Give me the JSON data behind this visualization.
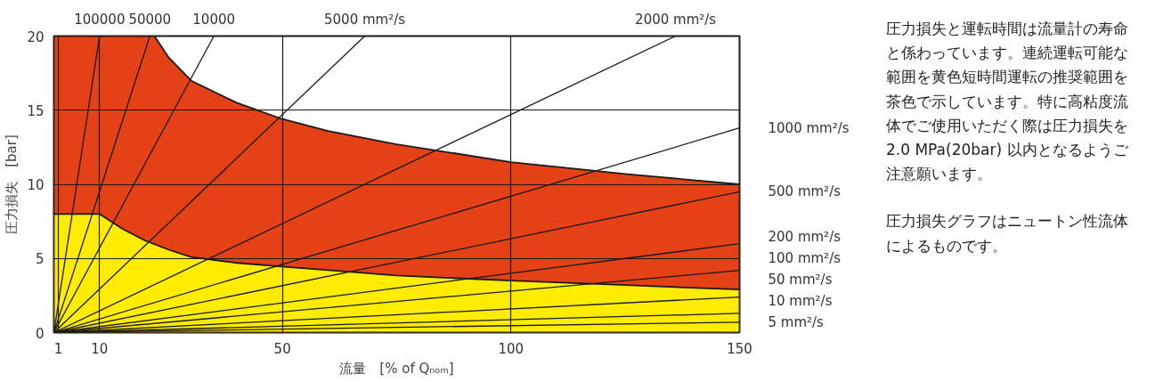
{
  "chart_data": {
    "type": "line",
    "ylabel": "圧力損失　[bar]",
    "xlabel": "流量　[% of Qₙₒₘ]",
    "xlim": [
      0,
      150
    ],
    "ylim": [
      0,
      20
    ],
    "xticks": [
      1,
      10,
      50,
      100,
      150
    ],
    "yticks": [
      0,
      5,
      10,
      15,
      20
    ],
    "grid": true,
    "annotations": [
      "圧力損失と運転時間は流量計の寿命と係わっています。連続運転可能な範囲を黄色短時間運転の推奨範囲を茶色で示しています。特に高粘度流体でご使用いただく際は圧力損失を2.0 MPa(20bar) 以内となるようご注意願います。",
      "圧力損失グラフはニュートン性流体によるものです。"
    ],
    "series": [
      {
        "type": "area",
        "color": "#e44117",
        "x": [
          0,
          22,
          25,
          30,
          40,
          50,
          60,
          75,
          100,
          125,
          150
        ],
        "values": [
          20,
          20,
          18.6,
          17.0,
          15.5,
          14.4,
          13.6,
          12.7,
          11.5,
          10.7,
          10.0
        ]
      },
      {
        "type": "area",
        "color": "#ffec00",
        "x": [
          0,
          10,
          12,
          15,
          20,
          25,
          30,
          40,
          50,
          75,
          100,
          125,
          150
        ],
        "values": [
          8,
          8,
          7.6,
          7.0,
          6.2,
          5.6,
          5.1,
          4.7,
          4.45,
          3.85,
          3.5,
          3.2,
          2.9
        ]
      },
      {
        "name": "100000",
        "color": "#1a1a1a",
        "x": [
          0,
          10
        ],
        "values": [
          0,
          20
        ]
      },
      {
        "name": "50000",
        "color": "#1a1a1a",
        "x": [
          0,
          21
        ],
        "values": [
          0,
          20
        ]
      },
      {
        "name": "10000",
        "color": "#1a1a1a",
        "x": [
          0,
          35
        ],
        "values": [
          0,
          20
        ]
      },
      {
        "name": "5000 mm²/s",
        "color": "#1a1a1a",
        "x": [
          0,
          68
        ],
        "values": [
          0,
          20
        ]
      },
      {
        "name": "2000 mm²/s",
        "color": "#1a1a1a",
        "x": [
          0,
          136
        ],
        "values": [
          0,
          20
        ]
      },
      {
        "name": "1000 mm²/s",
        "color": "#1a1a1a",
        "x": [
          0,
          150
        ],
        "values": [
          0,
          13.8
        ]
      },
      {
        "name": "500 mm²/s",
        "color": "#1a1a1a",
        "x": [
          0,
          150
        ],
        "values": [
          0,
          9.5
        ]
      },
      {
        "name": "200 mm²/s",
        "color": "#1a1a1a",
        "x": [
          0,
          150
        ],
        "values": [
          0,
          6.0
        ]
      },
      {
        "name": "100 mm²/s",
        "color": "#1a1a1a",
        "x": [
          0,
          150
        ],
        "values": [
          0,
          4.2
        ]
      },
      {
        "name": "50 mm²/s",
        "color": "#1a1a1a",
        "x": [
          0,
          150
        ],
        "values": [
          0,
          2.4
        ]
      },
      {
        "name": "10 mm²/s",
        "color": "#1a1a1a",
        "x": [
          0,
          150
        ],
        "values": [
          0,
          1.3
        ]
      },
      {
        "name": "5 mm²/s",
        "color": "#1a1a1a",
        "x": [
          0,
          150
        ],
        "values": [
          0,
          0.7
        ]
      }
    ]
  }
}
